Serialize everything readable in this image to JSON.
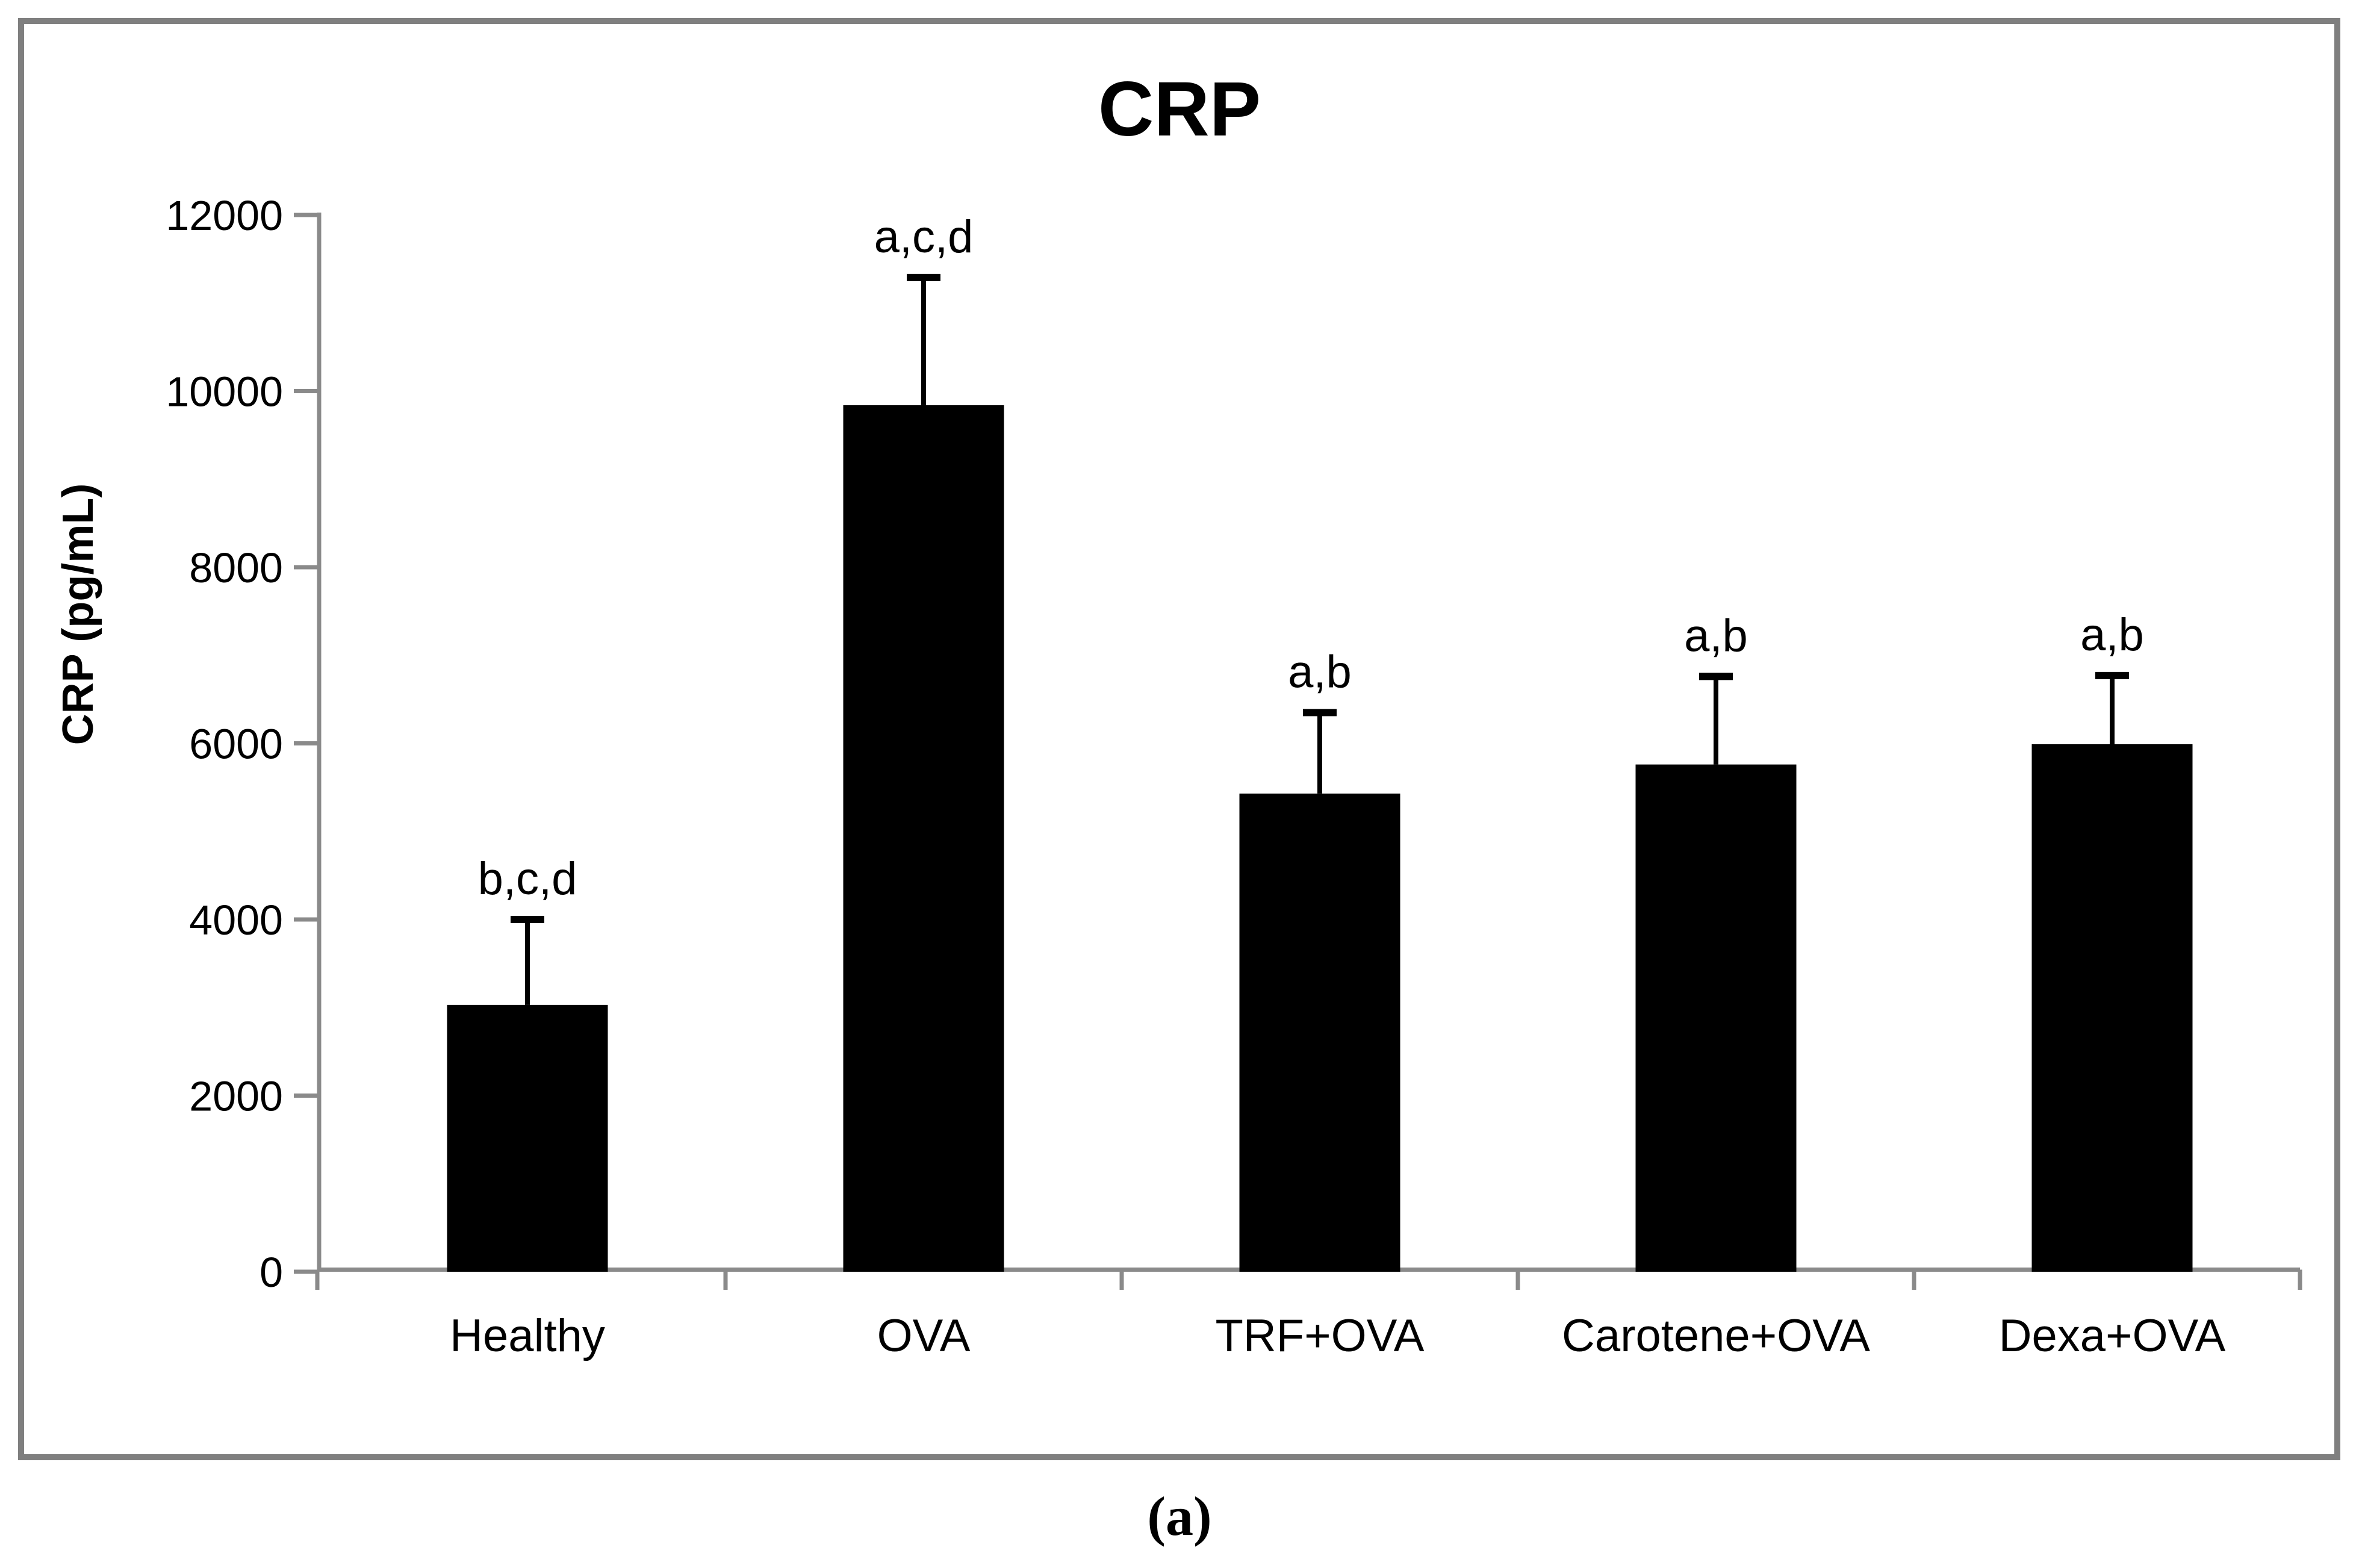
{
  "figure": {
    "caption": "(a)"
  },
  "chart_data": {
    "type": "bar",
    "title": "CRP",
    "xlabel": "",
    "ylabel": "CRP (pg/mL)",
    "ylim": [
      0,
      12000
    ],
    "yticks": [
      0,
      2000,
      4000,
      6000,
      8000,
      10000,
      12000
    ],
    "grid": false,
    "legend": null,
    "categories": [
      "Healthy",
      "OVA",
      "TRF+OVA",
      "Carotene+OVA",
      "Dexa+OVA"
    ],
    "series": [
      {
        "name": "CRP",
        "values": [
          3030,
          9840,
          5430,
          5760,
          5990
        ],
        "error_top": [
          4000,
          11290,
          6350,
          6760,
          6770
        ]
      }
    ],
    "annotations": [
      "b,c,d",
      "a,c,d",
      "a,b",
      "a,b",
      "a,b"
    ],
    "bar_color": "#000000",
    "error_color": "#000000",
    "text_color": "#000000",
    "axis_color": "#8a8a8a",
    "frame_color": "#7f7f7f",
    "background_color": "#ffffff"
  }
}
